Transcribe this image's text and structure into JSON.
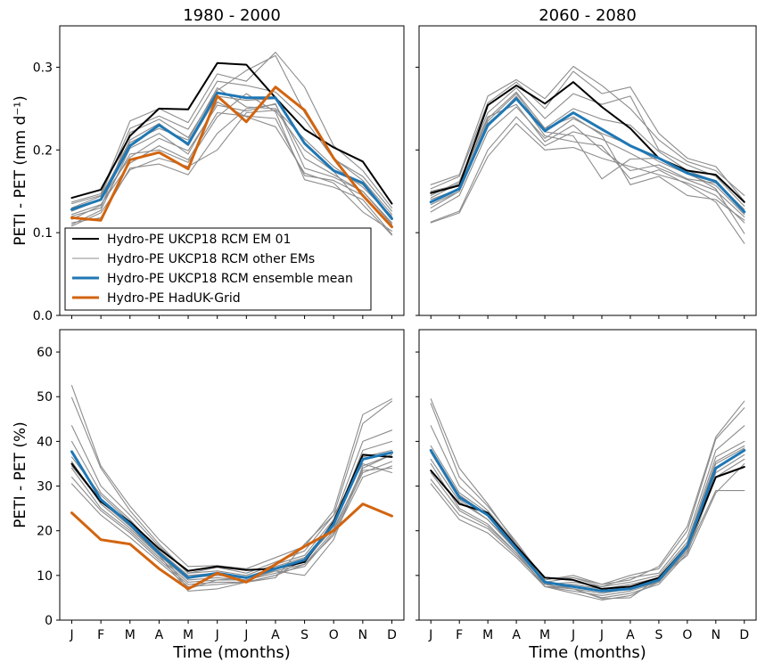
{
  "chart_data": {
    "type": "line",
    "months": [
      "J",
      "F",
      "M",
      "A",
      "M",
      "J",
      "J",
      "A",
      "S",
      "O",
      "N",
      "D"
    ],
    "xlabel": "Time (months)",
    "colors": {
      "em01": "#000000",
      "other": "#8c8c8c",
      "mean": "#1f77b4",
      "hadgrid": "#d2640f"
    },
    "legend": {
      "placement": "lower-left of top-left panel",
      "entries": [
        {
          "key": "em01",
          "label": "Hydro-PE UKCP18 RCM EM 01"
        },
        {
          "key": "other",
          "label": "Hydro-PE UKCP18 RCM other EMs"
        },
        {
          "key": "mean",
          "label": "Hydro-PE UKCP18 RCM ensemble mean"
        },
        {
          "key": "hadgrid",
          "label": "Hydro-PE HadUK-Grid"
        }
      ]
    },
    "rows": [
      {
        "ylabel": "PETI - PET (mm d⁻¹)",
        "ylim": [
          0,
          0.35
        ],
        "yticks": [
          0.0,
          0.1,
          0.2,
          0.3
        ],
        "ytick_labels": [
          "0.0",
          "0.1",
          "0.2",
          "0.3"
        ]
      },
      {
        "ylabel": "PETI - PET (%)",
        "ylim": [
          0,
          65
        ],
        "yticks": [
          0,
          10,
          20,
          30,
          40,
          50,
          60
        ],
        "ytick_labels": [
          "0",
          "10",
          "20",
          "30",
          "40",
          "50",
          "60"
        ]
      }
    ],
    "panels": [
      {
        "title": "1980 - 2000",
        "row": 0,
        "col": 0,
        "em01": [
          0.142,
          0.152,
          0.217,
          0.25,
          0.249,
          0.305,
          0.303,
          0.263,
          0.225,
          0.203,
          0.186,
          0.135
        ],
        "mean": [
          0.128,
          0.14,
          0.205,
          0.23,
          0.207,
          0.269,
          0.263,
          0.263,
          0.208,
          0.175,
          0.16,
          0.117
        ],
        "hadgrid": [
          0.118,
          0.115,
          0.188,
          0.197,
          0.177,
          0.265,
          0.234,
          0.276,
          0.248,
          0.19,
          0.145,
          0.107
        ],
        "other": [
          [
            0.137,
            0.147,
            0.235,
            0.25,
            0.233,
            0.292,
            0.283,
            0.318,
            0.276,
            0.205,
            0.175,
            0.13
          ],
          [
            0.12,
            0.13,
            0.221,
            0.237,
            0.215,
            0.272,
            0.296,
            0.314,
            0.245,
            0.19,
            0.163,
            0.122
          ],
          [
            0.128,
            0.14,
            0.212,
            0.232,
            0.205,
            0.265,
            0.26,
            0.262,
            0.207,
            0.176,
            0.158,
            0.118
          ],
          [
            0.112,
            0.118,
            0.178,
            0.183,
            0.17,
            0.22,
            0.25,
            0.255,
            0.19,
            0.17,
            0.15,
            0.11
          ],
          [
            0.116,
            0.133,
            0.195,
            0.2,
            0.185,
            0.24,
            0.268,
            0.246,
            0.164,
            0.155,
            0.14,
            0.098
          ],
          [
            0.11,
            0.127,
            0.202,
            0.22,
            0.195,
            0.258,
            0.24,
            0.228,
            0.172,
            0.16,
            0.125,
            0.102
          ],
          [
            0.135,
            0.145,
            0.226,
            0.241,
            0.225,
            0.283,
            0.278,
            0.27,
            0.237,
            0.189,
            0.168,
            0.126
          ],
          [
            0.126,
            0.14,
            0.191,
            0.214,
            0.199,
            0.254,
            0.247,
            0.256,
            0.178,
            0.167,
            0.15,
            0.112
          ],
          [
            0.122,
            0.134,
            0.184,
            0.205,
            0.188,
            0.245,
            0.241,
            0.238,
            0.169,
            0.163,
            0.145,
            0.106
          ],
          [
            0.108,
            0.124,
            0.176,
            0.19,
            0.18,
            0.2,
            0.245,
            0.248,
            0.2,
            0.174,
            0.134,
            0.097
          ],
          [
            0.13,
            0.144,
            0.209,
            0.226,
            0.212,
            0.275,
            0.252,
            0.25,
            0.213,
            0.18,
            0.155,
            0.12
          ]
        ]
      },
      {
        "title": "2060 - 2080",
        "row": 0,
        "col": 1,
        "em01": [
          0.148,
          0.157,
          0.254,
          0.278,
          0.256,
          0.282,
          0.252,
          0.226,
          0.19,
          0.175,
          0.17,
          0.137
        ],
        "mean": [
          0.137,
          0.153,
          0.23,
          0.262,
          0.223,
          0.245,
          0.225,
          0.205,
          0.19,
          0.172,
          0.162,
          0.125
        ],
        "hadgrid": null,
        "other": [
          [
            0.158,
            0.17,
            0.265,
            0.285,
            0.262,
            0.301,
            0.278,
            0.25,
            0.212,
            0.186,
            0.175,
            0.145
          ],
          [
            0.153,
            0.168,
            0.257,
            0.282,
            0.25,
            0.295,
            0.268,
            0.276,
            0.22,
            0.19,
            0.18,
            0.138
          ],
          [
            0.145,
            0.162,
            0.245,
            0.275,
            0.238,
            0.268,
            0.255,
            0.265,
            0.2,
            0.182,
            0.168,
            0.132
          ],
          [
            0.134,
            0.15,
            0.232,
            0.262,
            0.226,
            0.25,
            0.237,
            0.23,
            0.198,
            0.175,
            0.162,
            0.128
          ],
          [
            0.125,
            0.145,
            0.222,
            0.252,
            0.214,
            0.238,
            0.22,
            0.206,
            0.186,
            0.171,
            0.157,
            0.122
          ],
          [
            0.113,
            0.126,
            0.2,
            0.24,
            0.205,
            0.222,
            0.213,
            0.196,
            0.178,
            0.164,
            0.151,
            0.119
          ],
          [
            0.112,
            0.124,
            0.192,
            0.232,
            0.2,
            0.203,
            0.19,
            0.18,
            0.17,
            0.16,
            0.145,
            0.112
          ],
          [
            0.14,
            0.153,
            0.235,
            0.268,
            0.222,
            0.217,
            0.165,
            0.189,
            0.19,
            0.173,
            0.153,
            0.099
          ],
          [
            0.13,
            0.15,
            0.228,
            0.265,
            0.217,
            0.21,
            0.205,
            0.165,
            0.176,
            0.158,
            0.137,
            0.087
          ],
          [
            0.15,
            0.158,
            0.238,
            0.27,
            0.226,
            0.24,
            0.218,
            0.158,
            0.168,
            0.145,
            0.14,
            0.115
          ],
          [
            0.142,
            0.16,
            0.24,
            0.255,
            0.21,
            0.23,
            0.2,
            0.175,
            0.182,
            0.165,
            0.16,
            0.125
          ]
        ]
      },
      {
        "title": "",
        "row": 1,
        "col": 0,
        "em01": [
          35.0,
          26.5,
          22.0,
          16.0,
          11.0,
          12.0,
          11.2,
          11.5,
          13.0,
          22.0,
          37.0,
          36.5
        ],
        "mean": [
          37.7,
          27.0,
          21.5,
          15.0,
          9.5,
          10.5,
          9.5,
          11.5,
          13.5,
          21.5,
          36.0,
          37.5
        ],
        "hadgrid": [
          24.0,
          18.0,
          17.0,
          11.5,
          7.0,
          10.5,
          8.5,
          12.5,
          16.5,
          20.0,
          26.0,
          23.3
        ],
        "other": [
          [
            52.5,
            34.5,
            25.5,
            18.0,
            12.0,
            12.2,
            11.5,
            14.0,
            16.5,
            24.5,
            46.0,
            49.5
          ],
          [
            49.8,
            34.0,
            24.5,
            17.0,
            10.5,
            11.8,
            10.5,
            13.0,
            15.5,
            23.5,
            44.0,
            49.0
          ],
          [
            43.5,
            30.0,
            23.5,
            16.5,
            10.5,
            11.0,
            10.0,
            12.5,
            14.5,
            22.5,
            40.0,
            42.5
          ],
          [
            40.0,
            28.5,
            22.5,
            15.5,
            10.0,
            10.5,
            9.5,
            12.0,
            14.0,
            21.5,
            38.0,
            40.0
          ],
          [
            37.5,
            27.0,
            21.5,
            15.0,
            9.5,
            10.0,
            9.5,
            11.5,
            13.0,
            21.0,
            36.5,
            38.0
          ],
          [
            35.5,
            26.0,
            20.5,
            14.5,
            9.0,
            9.5,
            9.0,
            11.0,
            12.5,
            20.0,
            34.0,
            37.0
          ],
          [
            34.0,
            25.0,
            20.0,
            14.0,
            8.5,
            9.0,
            9.0,
            10.5,
            12.0,
            19.5,
            33.0,
            35.5
          ],
          [
            32.0,
            24.5,
            19.5,
            13.5,
            8.0,
            8.5,
            8.5,
            10.0,
            12.5,
            19.0,
            32.0,
            34.5
          ],
          [
            30.5,
            23.5,
            18.5,
            13.0,
            7.5,
            8.0,
            8.5,
            10.0,
            13.5,
            20.5,
            33.5,
            34.0
          ],
          [
            34.5,
            26.5,
            21.0,
            14.5,
            6.5,
            7.0,
            8.5,
            9.5,
            17.0,
            23.5,
            35.0,
            33.0
          ],
          [
            36.5,
            28.0,
            22.0,
            15.5,
            7.0,
            9.0,
            9.5,
            11.0,
            10.0,
            18.0,
            34.5,
            37.0
          ]
        ]
      },
      {
        "title": "",
        "row": 1,
        "col": 1,
        "em01": [
          33.5,
          26.0,
          24.0,
          16.5,
          9.5,
          9.0,
          7.0,
          7.5,
          9.5,
          16.5,
          32.0,
          34.3
        ],
        "mean": [
          38.0,
          27.5,
          23.5,
          16.0,
          8.5,
          7.5,
          6.5,
          7.0,
          9.0,
          16.5,
          34.0,
          38.0
        ],
        "hadgrid": null,
        "other": [
          [
            49.5,
            34.0,
            26.0,
            17.0,
            9.5,
            9.5,
            8.0,
            9.0,
            12.0,
            21.0,
            41.0,
            49.0
          ],
          [
            48.5,
            32.0,
            25.5,
            17.5,
            9.0,
            10.0,
            8.0,
            10.0,
            11.5,
            20.0,
            40.5,
            47.5
          ],
          [
            43.5,
            30.0,
            24.5,
            17.0,
            8.5,
            9.5,
            7.5,
            9.5,
            10.5,
            18.5,
            38.0,
            43.5
          ],
          [
            39.0,
            28.5,
            24.0,
            16.5,
            8.0,
            8.5,
            7.5,
            8.5,
            10.0,
            17.5,
            36.5,
            40.0
          ],
          [
            38.0,
            28.0,
            23.5,
            16.0,
            8.0,
            8.0,
            7.0,
            8.0,
            9.5,
            17.0,
            35.5,
            39.0
          ],
          [
            36.0,
            26.5,
            22.5,
            15.5,
            7.5,
            7.5,
            6.5,
            7.5,
            9.0,
            16.5,
            35.0,
            38.5
          ],
          [
            35.0,
            25.0,
            21.5,
            15.0,
            7.5,
            7.0,
            6.0,
            7.0,
            8.5,
            16.0,
            34.0,
            38.0
          ],
          [
            33.0,
            24.5,
            21.0,
            15.0,
            7.5,
            6.5,
            5.5,
            6.5,
            8.5,
            15.5,
            33.0,
            37.0
          ],
          [
            31.5,
            23.5,
            20.5,
            14.5,
            8.0,
            7.0,
            5.0,
            6.0,
            8.0,
            15.0,
            32.0,
            36.0
          ],
          [
            30.5,
            22.5,
            19.5,
            14.0,
            7.5,
            6.0,
            4.5,
            5.5,
            8.5,
            15.5,
            29.0,
            29.0
          ],
          [
            37.5,
            27.0,
            22.5,
            16.0,
            8.5,
            7.0,
            4.8,
            5.0,
            9.5,
            14.5,
            28.5,
            35.0
          ]
        ]
      }
    ]
  }
}
